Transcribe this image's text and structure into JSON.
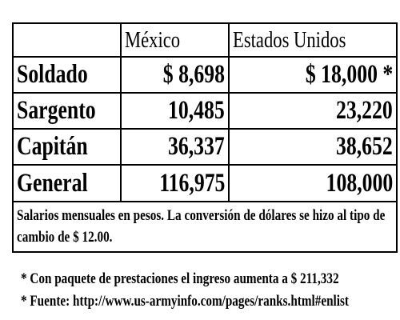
{
  "table": {
    "header": [
      "México",
      "Estados Unidos"
    ],
    "rows": [
      [
        "Soldado",
        "$ 8,698",
        "$ 18,000 *"
      ],
      [
        "Sargento",
        "10,485",
        "23,220"
      ],
      [
        "Capitán",
        "36,337",
        "38,652"
      ],
      [
        "General",
        "116,975",
        "108,000"
      ]
    ],
    "note": "Salarios mensuales en pesos. La conversión de dólares se hizo al tipo de cambio de $ 12.00.",
    "footnotes": [
      "* Con paquete de prestaciones el ingreso aumenta a $ 211,332",
      "* Fuente: http://www.us-armyinfo.com/pages/ranks.html#enlist"
    ]
  }
}
